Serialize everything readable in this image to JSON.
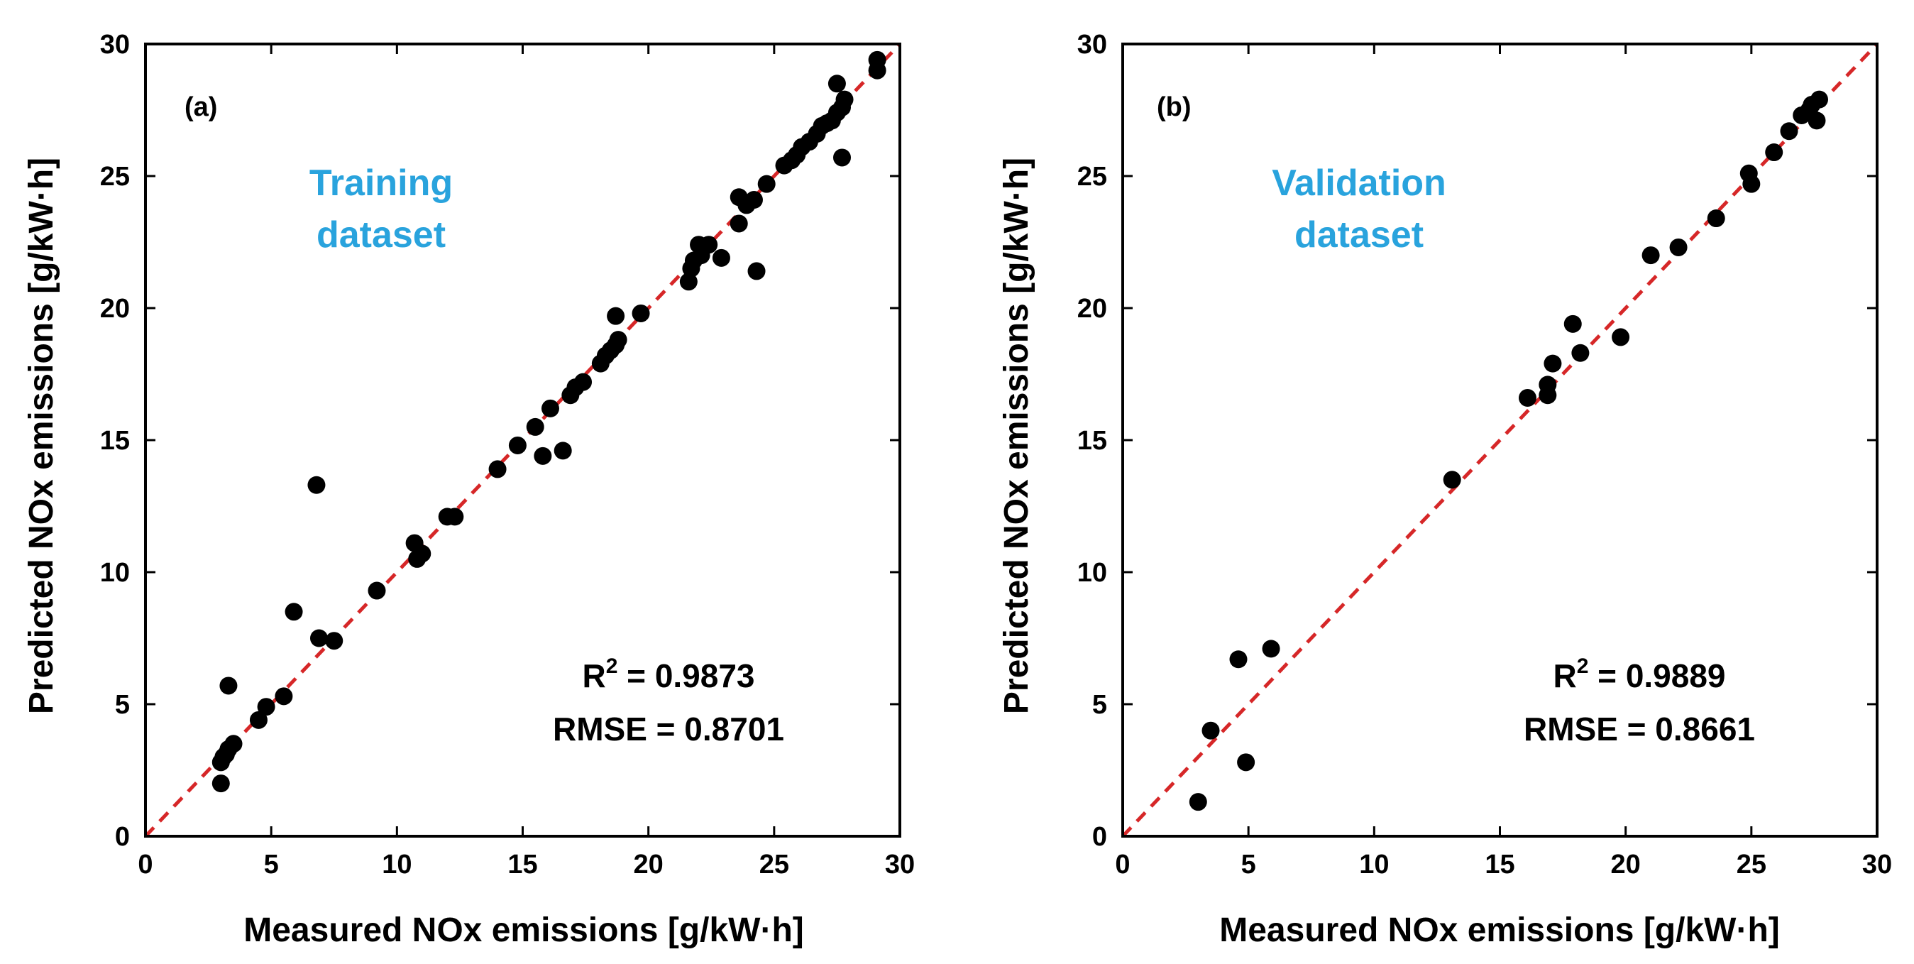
{
  "colors": {
    "marker": "#000000",
    "reference_line": "#d62728",
    "dataset_label": "#29a3dd"
  },
  "chart_data": [
    {
      "type": "scatter",
      "panel_label": "(a)",
      "dataset_line1": "Training",
      "dataset_line2": "dataset",
      "xlabel": "Measured NOx emissions [g/kW·h]",
      "ylabel": "Predicted NOx emissions [g/kW·h]",
      "xlim": [
        0,
        30
      ],
      "ylim": [
        0,
        30
      ],
      "xticks": [
        0,
        5,
        10,
        15,
        20,
        25,
        30
      ],
      "yticks": [
        0,
        5,
        10,
        15,
        20,
        25,
        30
      ],
      "r2_prefix": "R",
      "r2_sup": "2",
      "r2_value": " = 0.9873",
      "rmse_text": "RMSE = 0.8701",
      "reference_line": "y = x",
      "points": [
        [
          3.0,
          2.0
        ],
        [
          3.0,
          2.8
        ],
        [
          3.1,
          3.0
        ],
        [
          3.2,
          3.1
        ],
        [
          3.3,
          3.3
        ],
        [
          3.5,
          3.5
        ],
        [
          3.3,
          5.7
        ],
        [
          4.5,
          4.4
        ],
        [
          4.8,
          4.9
        ],
        [
          5.5,
          5.3
        ],
        [
          5.9,
          8.5
        ],
        [
          6.8,
          13.3
        ],
        [
          6.9,
          7.5
        ],
        [
          7.5,
          7.4
        ],
        [
          9.2,
          9.3
        ],
        [
          10.7,
          11.1
        ],
        [
          10.8,
          10.5
        ],
        [
          11.0,
          10.7
        ],
        [
          12.0,
          12.1
        ],
        [
          12.3,
          12.1
        ],
        [
          14.0,
          13.9
        ],
        [
          14.8,
          14.8
        ],
        [
          15.5,
          15.5
        ],
        [
          15.8,
          14.4
        ],
        [
          16.1,
          16.2
        ],
        [
          16.6,
          14.6
        ],
        [
          16.9,
          16.7
        ],
        [
          17.1,
          17.0
        ],
        [
          17.4,
          17.2
        ],
        [
          18.1,
          17.9
        ],
        [
          18.3,
          18.2
        ],
        [
          18.5,
          18.4
        ],
        [
          18.7,
          18.6
        ],
        [
          18.8,
          18.8
        ],
        [
          18.7,
          19.7
        ],
        [
          19.7,
          19.8
        ],
        [
          21.6,
          21.0
        ],
        [
          21.7,
          21.5
        ],
        [
          21.8,
          21.8
        ],
        [
          22.1,
          22.0
        ],
        [
          22.0,
          22.4
        ],
        [
          22.4,
          22.4
        ],
        [
          22.9,
          21.9
        ],
        [
          23.6,
          23.2
        ],
        [
          23.6,
          24.2
        ],
        [
          23.9,
          23.9
        ],
        [
          24.2,
          24.1
        ],
        [
          24.3,
          21.4
        ],
        [
          24.7,
          24.7
        ],
        [
          25.4,
          25.4
        ],
        [
          25.7,
          25.6
        ],
        [
          25.9,
          25.8
        ],
        [
          26.1,
          26.1
        ],
        [
          26.4,
          26.3
        ],
        [
          26.7,
          26.6
        ],
        [
          26.9,
          26.9
        ],
        [
          27.1,
          27.0
        ],
        [
          27.3,
          27.1
        ],
        [
          27.5,
          27.4
        ],
        [
          27.5,
          28.5
        ],
        [
          27.7,
          27.6
        ],
        [
          27.7,
          25.7
        ],
        [
          27.8,
          27.9
        ],
        [
          29.1,
          29.0
        ],
        [
          29.1,
          29.4
        ]
      ]
    },
    {
      "type": "scatter",
      "panel_label": "(b)",
      "dataset_line1": "Validation",
      "dataset_line2": "dataset",
      "xlabel": "Measured NOx emissions [g/kW·h]",
      "ylabel": "Predicted NOx emissions [g/kW·h]",
      "xlim": [
        0,
        30
      ],
      "ylim": [
        0,
        30
      ],
      "xticks": [
        0,
        5,
        10,
        15,
        20,
        25,
        30
      ],
      "yticks": [
        0,
        5,
        10,
        15,
        20,
        25,
        30
      ],
      "r2_prefix": "R",
      "r2_sup": "2",
      "r2_value": " = 0.9889",
      "rmse_text": "RMSE = 0.8661",
      "reference_line": "y = x",
      "points": [
        [
          3.0,
          1.3
        ],
        [
          3.5,
          4.0
        ],
        [
          4.6,
          6.7
        ],
        [
          4.9,
          2.8
        ],
        [
          5.9,
          7.1
        ],
        [
          13.1,
          13.5
        ],
        [
          16.1,
          16.6
        ],
        [
          16.9,
          16.7
        ],
        [
          16.9,
          17.1
        ],
        [
          17.1,
          17.9
        ],
        [
          17.9,
          19.4
        ],
        [
          18.2,
          18.3
        ],
        [
          19.8,
          18.9
        ],
        [
          21.0,
          22.0
        ],
        [
          22.1,
          22.3
        ],
        [
          23.6,
          23.4
        ],
        [
          24.9,
          25.1
        ],
        [
          25.0,
          24.7
        ],
        [
          25.9,
          25.9
        ],
        [
          26.5,
          26.7
        ],
        [
          27.0,
          27.3
        ],
        [
          27.3,
          27.5
        ],
        [
          27.4,
          27.7
        ],
        [
          27.6,
          27.1
        ],
        [
          27.7,
          27.9
        ]
      ]
    }
  ]
}
